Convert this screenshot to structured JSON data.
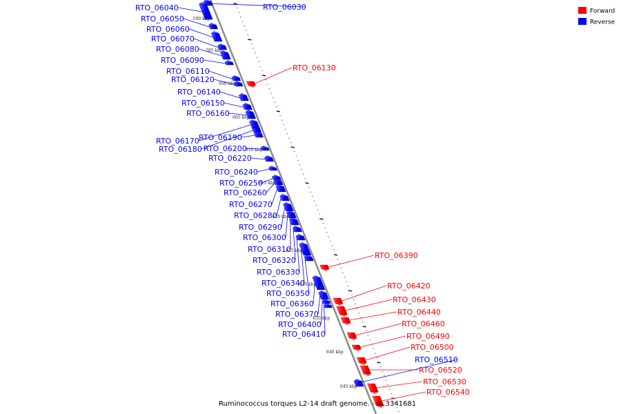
{
  "colors": {
    "forward": "#ff0000",
    "reverse": "#0000ff",
    "backbone": "#888888"
  },
  "legend": [
    {
      "label": "Forward",
      "color": "#ff0000"
    },
    {
      "label": "Reverse",
      "color": "#0000ff"
    }
  ],
  "caption": "Ruminococcus torques L2-14 draft genome. - 0..3341681",
  "ticks": [
    "590 kbp",
    "595 kbp",
    "600 kbp",
    "605 kbp",
    "610 kbp",
    "615 kbp",
    "620 kbp",
    "625 kbp",
    "630 kbp",
    "635 kbp",
    "640 kbp",
    "645 kbp"
  ],
  "genes": [
    {
      "id": "RTO_06030",
      "strand": "reverse"
    },
    {
      "id": "RTO_06040",
      "strand": "reverse"
    },
    {
      "id": "RTO_06050",
      "strand": "reverse"
    },
    {
      "id": "RTO_06060",
      "strand": "reverse"
    },
    {
      "id": "RTO_06070",
      "strand": "reverse"
    },
    {
      "id": "RTO_06080",
      "strand": "reverse"
    },
    {
      "id": "RTO_06090",
      "strand": "reverse"
    },
    {
      "id": "RTO_06110",
      "strand": "reverse"
    },
    {
      "id": "RTO_06120",
      "strand": "reverse"
    },
    {
      "id": "RTO_06130",
      "strand": "forward"
    },
    {
      "id": "RTO_06140",
      "strand": "reverse"
    },
    {
      "id": "RTO_06150",
      "strand": "reverse"
    },
    {
      "id": "RTO_06160",
      "strand": "reverse"
    },
    {
      "id": "RTO_06170",
      "strand": "reverse"
    },
    {
      "id": "RTO_06180",
      "strand": "reverse"
    },
    {
      "id": "RTO_06190",
      "strand": "reverse"
    },
    {
      "id": "RTO_06200",
      "strand": "reverse"
    },
    {
      "id": "RTO_06220",
      "strand": "reverse"
    },
    {
      "id": "RTO_06240",
      "strand": "reverse"
    },
    {
      "id": "RTO_06250",
      "strand": "reverse"
    },
    {
      "id": "RTO_06260",
      "strand": "reverse"
    },
    {
      "id": "RTO_06270",
      "strand": "reverse"
    },
    {
      "id": "RTO_06280",
      "strand": "reverse"
    },
    {
      "id": "RTO_06290",
      "strand": "reverse"
    },
    {
      "id": "RTO_06300",
      "strand": "reverse"
    },
    {
      "id": "RTO_06310",
      "strand": "reverse"
    },
    {
      "id": "RTO_06320",
      "strand": "reverse"
    },
    {
      "id": "RTO_06330",
      "strand": "reverse"
    },
    {
      "id": "RTO_06340",
      "strand": "reverse"
    },
    {
      "id": "RTO_06350",
      "strand": "reverse"
    },
    {
      "id": "RTO_06360",
      "strand": "reverse"
    },
    {
      "id": "RTO_06370",
      "strand": "reverse"
    },
    {
      "id": "RTO_06390",
      "strand": "forward"
    },
    {
      "id": "RTO_06400",
      "strand": "reverse"
    },
    {
      "id": "RTO_06410",
      "strand": "reverse"
    },
    {
      "id": "RTO_06420",
      "strand": "forward"
    },
    {
      "id": "RTO_06430",
      "strand": "forward"
    },
    {
      "id": "RTO_06440",
      "strand": "forward"
    },
    {
      "id": "RTO_06460",
      "strand": "forward"
    },
    {
      "id": "RTO_06490",
      "strand": "forward"
    },
    {
      "id": "RTO_06500",
      "strand": "forward"
    },
    {
      "id": "RTO_06510",
      "strand": "reverse"
    },
    {
      "id": "RTO_06520",
      "strand": "forward"
    },
    {
      "id": "RTO_06530",
      "strand": "forward"
    },
    {
      "id": "RTO_06540",
      "strand": "forward"
    }
  ]
}
